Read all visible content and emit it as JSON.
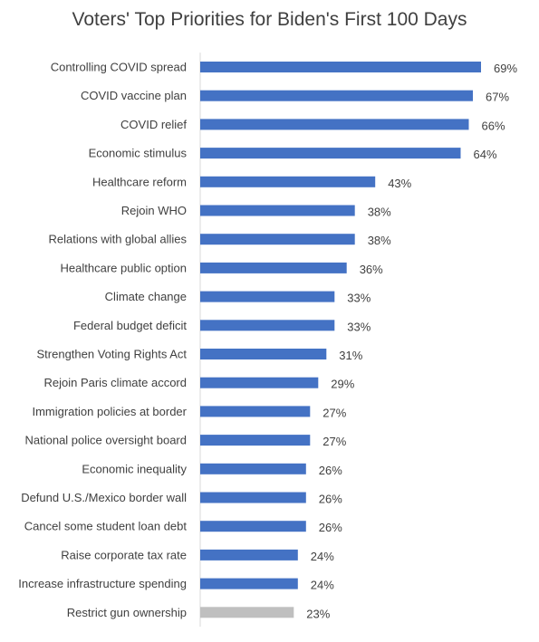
{
  "chart_data": {
    "type": "bar",
    "orientation": "horizontal",
    "title": "Voters' Top Priorities for Biden's First 100 Days",
    "xlabel": "",
    "ylabel": "",
    "value_suffix": "%",
    "grid": false,
    "legend": "none",
    "xlim": [
      0,
      70
    ],
    "colors": {
      "default": "#4472C4",
      "highlight": "#BFBFBF"
    },
    "categories": [
      "Controlling COVID spread",
      "COVID vaccine plan",
      "COVID relief",
      "Economic stimulus",
      "Healthcare reform",
      "Rejoin WHO",
      "Relations with global allies",
      "Healthcare public option",
      "Climate change",
      "Federal budget deficit",
      "Strengthen Voting Rights Act",
      "Rejoin Paris climate accord",
      "Immigration policies at border",
      "National police oversight board",
      "Economic inequality",
      "Defund U.S./Mexico border wall",
      "Cancel some student loan debt",
      "Raise corporate tax rate",
      "Increase infrastructure spending",
      "Restrict gun ownership"
    ],
    "values": [
      69,
      67,
      66,
      64,
      43,
      38,
      38,
      36,
      33,
      33,
      31,
      29,
      27,
      27,
      26,
      26,
      26,
      24,
      24,
      23
    ],
    "value_labels": [
      "69%",
      "67%",
      "66%",
      "64%",
      "43%",
      "38%",
      "38%",
      "36%",
      "33%",
      "33%",
      "31%",
      "29%",
      "27%",
      "27%",
      "26%",
      "26%",
      "26%",
      "24%",
      "24%",
      "23%"
    ],
    "bar_colors": [
      "#4472C4",
      "#4472C4",
      "#4472C4",
      "#4472C4",
      "#4472C4",
      "#4472C4",
      "#4472C4",
      "#4472C4",
      "#4472C4",
      "#4472C4",
      "#4472C4",
      "#4472C4",
      "#4472C4",
      "#4472C4",
      "#4472C4",
      "#4472C4",
      "#4472C4",
      "#4472C4",
      "#4472C4",
      "#BFBFBF"
    ]
  }
}
